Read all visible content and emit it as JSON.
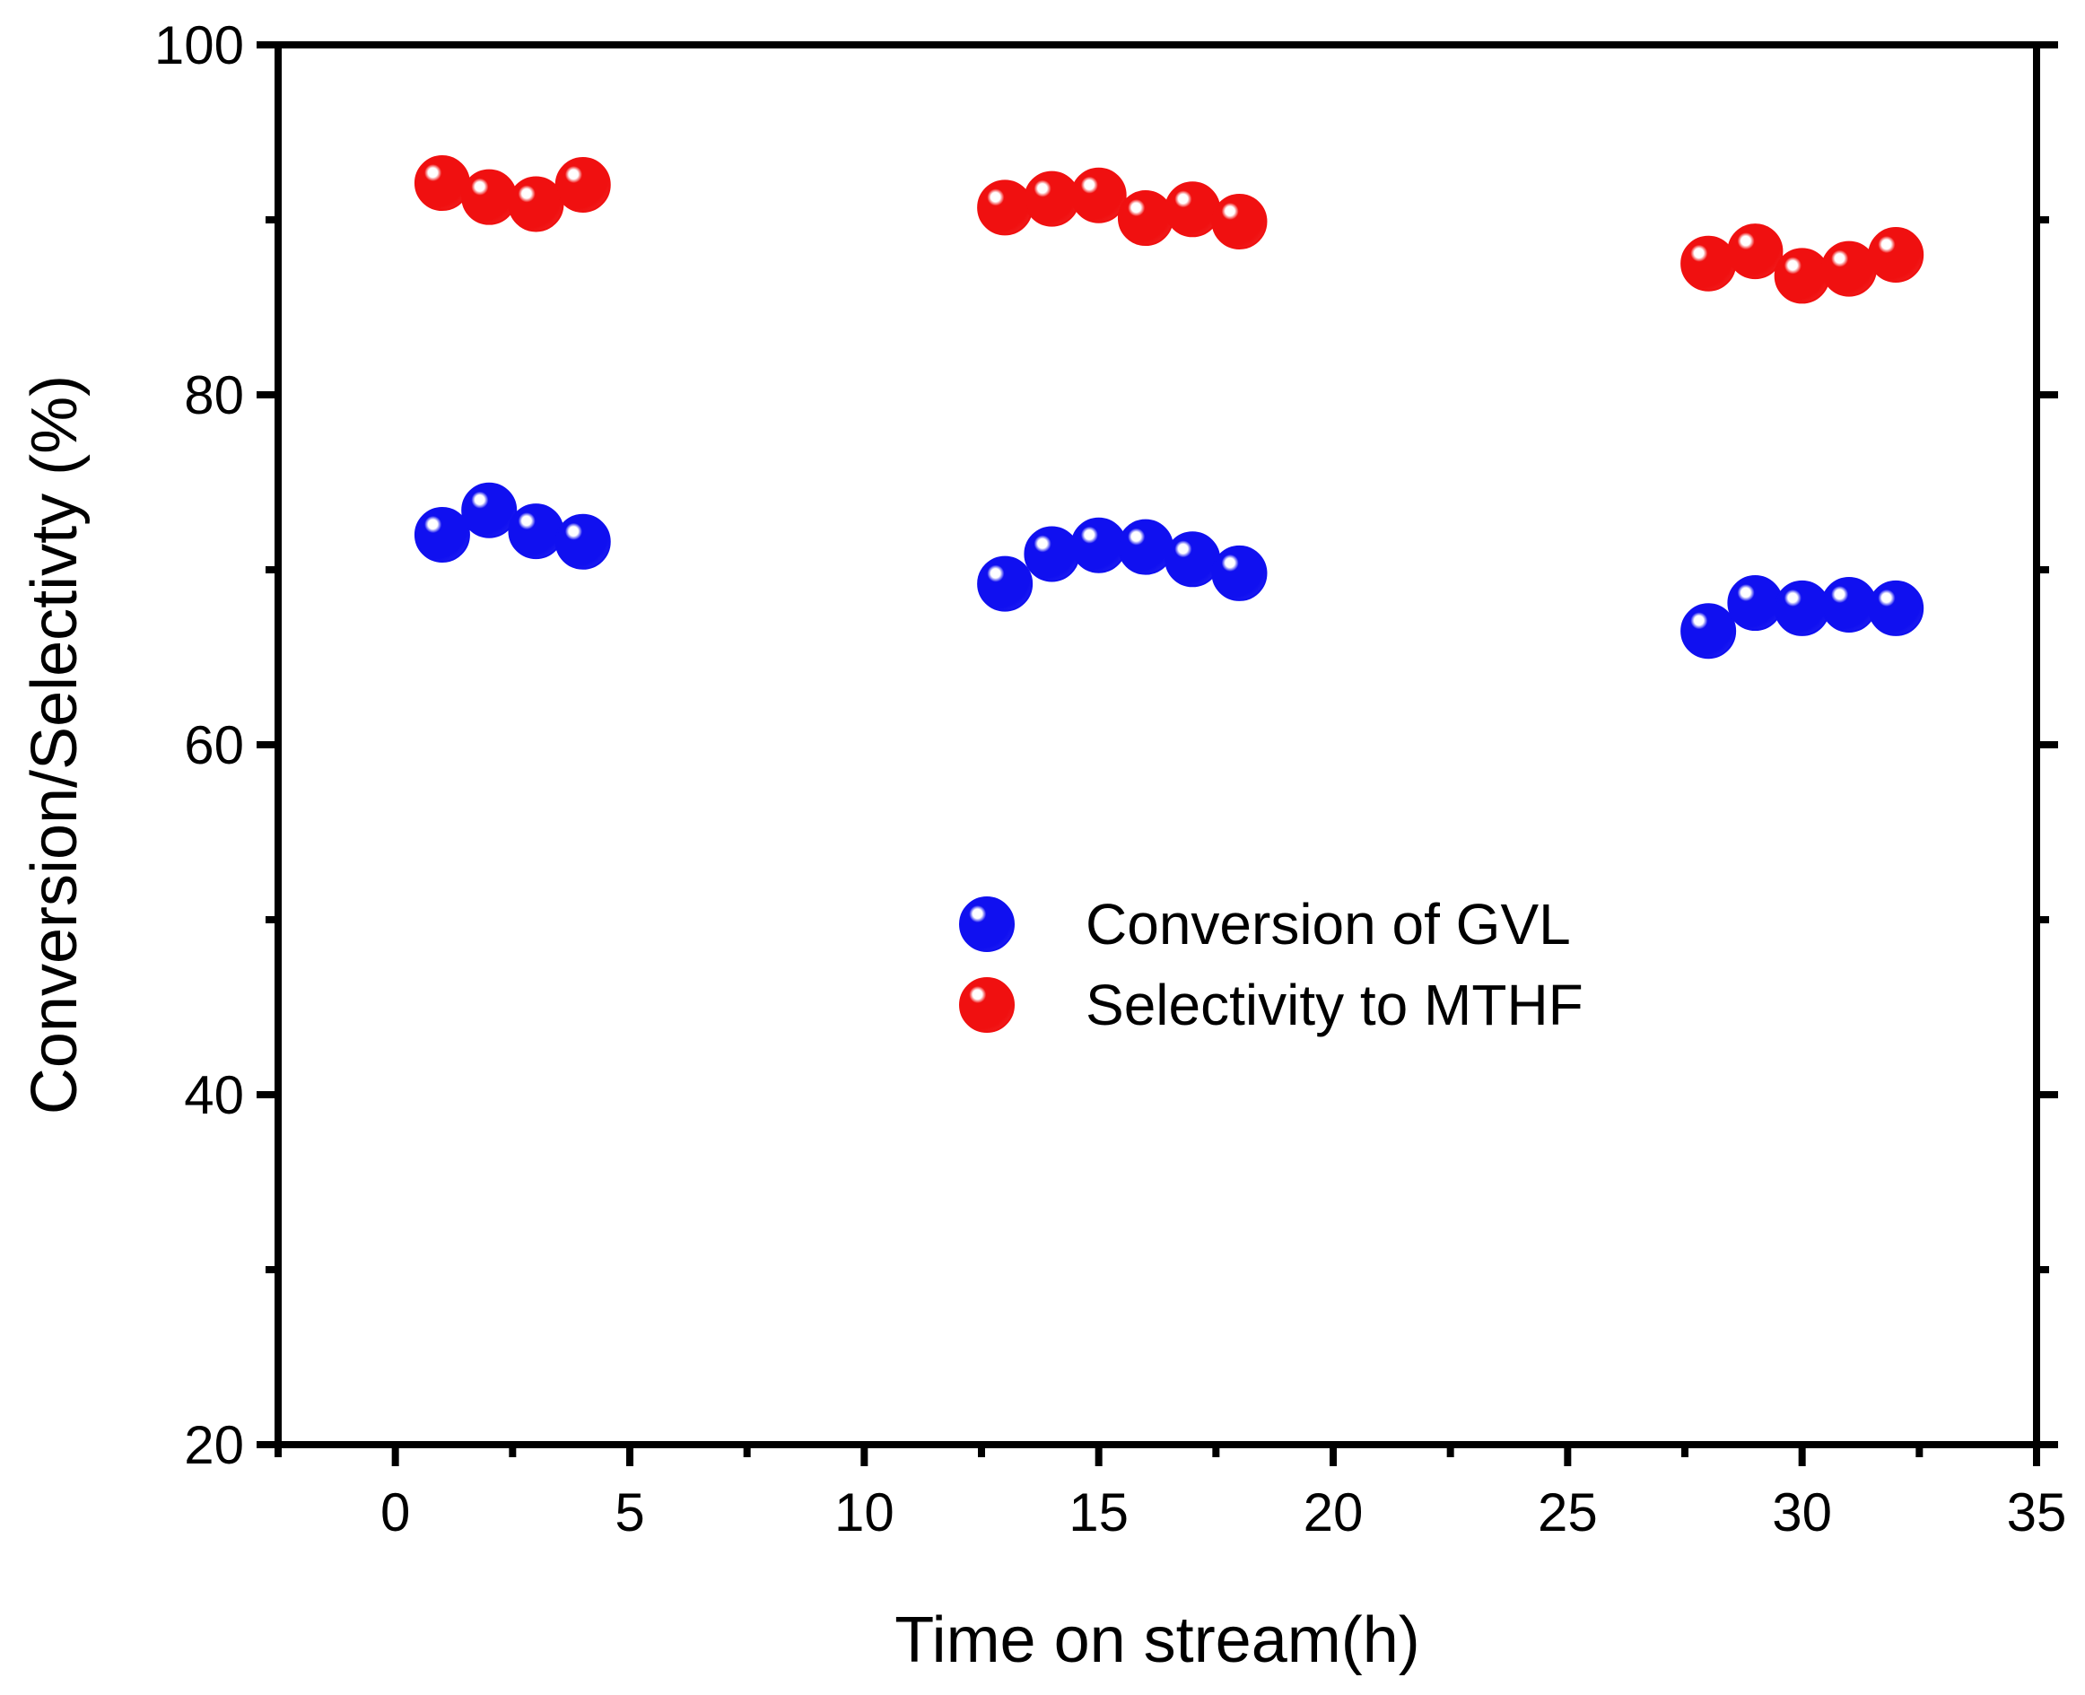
{
  "chart_data": {
    "type": "scatter",
    "title": "",
    "xlabel": "Time on stream(h)",
    "ylabel": "Conversion/Selectivty (%)",
    "xlim": [
      -2.5,
      35
    ],
    "ylim": [
      20,
      100
    ],
    "xticks": [
      0,
      5,
      10,
      15,
      20,
      25,
      30,
      35
    ],
    "yticks": [
      20,
      40,
      60,
      80,
      100
    ],
    "grid": false,
    "legend_position": "center-right",
    "series": [
      {
        "name": "Conversion of GVL",
        "color": "#1010f0",
        "marker": "sphere",
        "x": [
          1,
          2,
          3,
          4,
          13,
          14,
          15,
          16,
          17,
          18,
          28,
          29,
          30,
          31,
          32
        ],
        "y": [
          72.0,
          73.4,
          72.2,
          71.6,
          69.2,
          70.9,
          71.4,
          71.3,
          70.6,
          69.8,
          66.5,
          68.1,
          67.8,
          68.0,
          67.8
        ]
      },
      {
        "name": "Selectivity to MTHF",
        "color": "#f01010",
        "marker": "sphere",
        "x": [
          1,
          2,
          3,
          4,
          13,
          14,
          15,
          16,
          17,
          18,
          28,
          29,
          30,
          31,
          32
        ],
        "y": [
          92.1,
          91.3,
          90.9,
          92.0,
          90.7,
          91.2,
          91.4,
          90.1,
          90.6,
          89.9,
          87.5,
          88.2,
          86.8,
          87.2,
          88.0
        ]
      }
    ]
  }
}
